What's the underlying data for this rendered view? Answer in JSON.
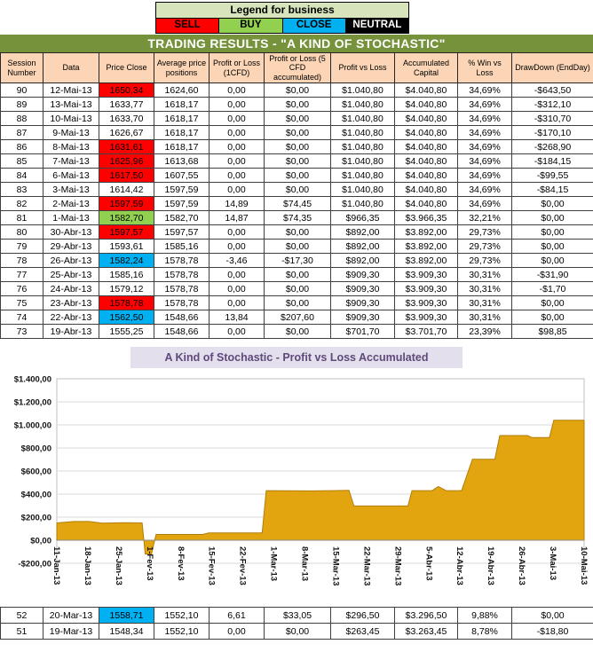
{
  "legend": {
    "title": "Legend for business",
    "items": [
      {
        "label": "SELL",
        "key": "sell",
        "text_color": "#000000"
      },
      {
        "label": "BUY",
        "key": "buy",
        "text_color": "#000000"
      },
      {
        "label": "CLOSE",
        "key": "close",
        "text_color": "#000000"
      },
      {
        "label": "NEUTRAL",
        "key": "neutral",
        "text_color": "#FFFFFF"
      }
    ]
  },
  "colors": {
    "sell": "#FF0000",
    "buy": "#92D050",
    "close": "#00B0F0",
    "neutral": "#000000"
  },
  "title": "TRADING RESULTS - \"A KIND OF STOCHASTIC\"",
  "table": {
    "headers": [
      "Session Number",
      "Data",
      "Price Close",
      "Average price positions",
      "Profit or Loss (1CFD)",
      "Profit or Loss (5 CFD accumulated)",
      "Profit vs Loss",
      "Accumulated Capital",
      "% Win vs Loss",
      "DrawDown (EndDay)"
    ],
    "rows": [
      {
        "session": "90",
        "date": "12-Mai-13",
        "close": "1650,34",
        "tag": "sell",
        "avg": "1624,60",
        "pl1": "0,00",
        "pl5": "$0,00",
        "pvl": "$1.040,80",
        "cap": "$4.040,80",
        "win": "34,69%",
        "dd": "-$643,50"
      },
      {
        "session": "89",
        "date": "13-Mai-13",
        "close": "1633,77",
        "tag": null,
        "avg": "1618,17",
        "pl1": "0,00",
        "pl5": "$0,00",
        "pvl": "$1.040,80",
        "cap": "$4.040,80",
        "win": "34,69%",
        "dd": "-$312,10"
      },
      {
        "session": "88",
        "date": "10-Mai-13",
        "close": "1633,70",
        "tag": null,
        "avg": "1618,17",
        "pl1": "0,00",
        "pl5": "$0,00",
        "pvl": "$1.040,80",
        "cap": "$4.040,80",
        "win": "34,69%",
        "dd": "-$310,70"
      },
      {
        "session": "87",
        "date": "9-Mai-13",
        "close": "1626,67",
        "tag": null,
        "avg": "1618,17",
        "pl1": "0,00",
        "pl5": "$0,00",
        "pvl": "$1.040,80",
        "cap": "$4.040,80",
        "win": "34,69%",
        "dd": "-$170,10"
      },
      {
        "session": "86",
        "date": "8-Mai-13",
        "close": "1631,61",
        "tag": "sell",
        "avg": "1618,17",
        "pl1": "0,00",
        "pl5": "$0,00",
        "pvl": "$1.040,80",
        "cap": "$4.040,80",
        "win": "34,69%",
        "dd": "-$268,90"
      },
      {
        "session": "85",
        "date": "7-Mai-13",
        "close": "1625,96",
        "tag": "sell",
        "avg": "1613,68",
        "pl1": "0,00",
        "pl5": "$0,00",
        "pvl": "$1.040,80",
        "cap": "$4.040,80",
        "win": "34,69%",
        "dd": "-$184,15"
      },
      {
        "session": "84",
        "date": "6-Mai-13",
        "close": "1617,50",
        "tag": "sell",
        "avg": "1607,55",
        "pl1": "0,00",
        "pl5": "$0,00",
        "pvl": "$1.040,80",
        "cap": "$4.040,80",
        "win": "34,69%",
        "dd": "-$99,55"
      },
      {
        "session": "83",
        "date": "3-Mai-13",
        "close": "1614,42",
        "tag": null,
        "avg": "1597,59",
        "pl1": "0,00",
        "pl5": "$0,00",
        "pvl": "$1.040,80",
        "cap": "$4.040,80",
        "win": "34,69%",
        "dd": "-$84,15"
      },
      {
        "session": "82",
        "date": "2-Mai-13",
        "close": "1597,59",
        "tag": "sell",
        "avg": "1597,59",
        "pl1": "14,89",
        "pl5": "$74,45",
        "pvl": "$1.040,80",
        "cap": "$4.040,80",
        "win": "34,69%",
        "dd": "$0,00"
      },
      {
        "session": "81",
        "date": "1-Mai-13",
        "close": "1582,70",
        "tag": "buy",
        "avg": "1582,70",
        "pl1": "14,87",
        "pl5": "$74,35",
        "pvl": "$966,35",
        "cap": "$3.966,35",
        "win": "32,21%",
        "dd": "$0,00"
      },
      {
        "session": "80",
        "date": "30-Abr-13",
        "close": "1597,57",
        "tag": "sell",
        "avg": "1597,57",
        "pl1": "0,00",
        "pl5": "$0,00",
        "pvl": "$892,00",
        "cap": "$3.892,00",
        "win": "29,73%",
        "dd": "$0,00"
      },
      {
        "session": "79",
        "date": "29-Abr-13",
        "close": "1593,61",
        "tag": null,
        "avg": "1585,16",
        "pl1": "0,00",
        "pl5": "$0,00",
        "pvl": "$892,00",
        "cap": "$3.892,00",
        "win": "29,73%",
        "dd": "$0,00"
      },
      {
        "session": "78",
        "date": "26-Abr-13",
        "close": "1582,24",
        "tag": "close",
        "avg": "1578,78",
        "pl1": "-3,46",
        "pl5": "-$17,30",
        "pvl": "$892,00",
        "cap": "$3.892,00",
        "win": "29,73%",
        "dd": "$0,00"
      },
      {
        "session": "77",
        "date": "25-Abr-13",
        "close": "1585,16",
        "tag": null,
        "avg": "1578,78",
        "pl1": "0,00",
        "pl5": "$0,00",
        "pvl": "$909,30",
        "cap": "$3.909,30",
        "win": "30,31%",
        "dd": "-$31,90"
      },
      {
        "session": "76",
        "date": "24-Abr-13",
        "close": "1579,12",
        "tag": null,
        "avg": "1578,78",
        "pl1": "0,00",
        "pl5": "$0,00",
        "pvl": "$909,30",
        "cap": "$3.909,30",
        "win": "30,31%",
        "dd": "-$1,70"
      },
      {
        "session": "75",
        "date": "23-Abr-13",
        "close": "1578,78",
        "tag": "sell",
        "avg": "1578,78",
        "pl1": "0,00",
        "pl5": "$0,00",
        "pvl": "$909,30",
        "cap": "$3.909,30",
        "win": "30,31%",
        "dd": "$0,00"
      },
      {
        "session": "74",
        "date": "22-Abr-13",
        "close": "1562,50",
        "tag": "close",
        "avg": "1548,66",
        "pl1": "13,84",
        "pl5": "$207,60",
        "pvl": "$909,30",
        "cap": "$3.909,30",
        "win": "30,31%",
        "dd": "$0,00"
      },
      {
        "session": "73",
        "date": "19-Abr-13",
        "close": "1555,25",
        "tag": null,
        "avg": "1548,66",
        "pl1": "0,00",
        "pl5": "$0,00",
        "pvl": "$701,70",
        "cap": "$3.701,70",
        "win": "23,39%",
        "dd": "$98,85"
      }
    ]
  },
  "bottom_rows": [
    {
      "session": "52",
      "date": "20-Mar-13",
      "close": "1558,71",
      "tag": "close",
      "avg": "1552,10",
      "pl1": "6,61",
      "pl5": "$33,05",
      "pvl": "$296,50",
      "cap": "$3.296,50",
      "win": "9,88%",
      "dd": "$0,00"
    },
    {
      "session": "51",
      "date": "19-Mar-13",
      "close": "1548,34",
      "tag": null,
      "avg": "1552,10",
      "pl1": "0,00",
      "pl5": "$0,00",
      "pvl": "$263,45",
      "cap": "$3.263,45",
      "win": "8,78%",
      "dd": "-$18,80"
    }
  ],
  "chart_data": {
    "type": "area",
    "title": "A Kind of Stochastic - Profit vs Loss Accumulated",
    "xlabel": "",
    "ylabel": "",
    "ylim": [
      -200,
      1400
    ],
    "grid": true,
    "legend_position": "none",
    "fill_color": "#E3A50F",
    "stroke_color": "#B07D08",
    "y_ticks": [
      "$1.400,00",
      "$1.200,00",
      "$1.000,00",
      "$800,00",
      "$600,00",
      "$400,00",
      "$200,00",
      "$0,00",
      "-$200,00"
    ],
    "x_labels": [
      "11-Jan-13",
      "18-Jan-13",
      "25-Jan-13",
      "1-Fev-13",
      "8-Fev-13",
      "15-Fev-13",
      "22-Fev-13",
      "1-Mar-13",
      "8-Mar-13",
      "15-Mar-13",
      "22-Mar-13",
      "29-Mar-13",
      "5-Abr-13",
      "12-Abr-13",
      "19-Abr-13",
      "26-Abr-13",
      "3-Mai-13",
      "10-Mai-13"
    ],
    "series": [
      {
        "name": "Profit vs Loss Accumulated",
        "points": [
          [
            0,
            150
          ],
          [
            0.55,
            162
          ],
          [
            1.05,
            162
          ],
          [
            1.45,
            148
          ],
          [
            2.2,
            152
          ],
          [
            2.75,
            150
          ],
          [
            2.85,
            -120
          ],
          [
            3.05,
            -120
          ],
          [
            3.2,
            50
          ],
          [
            4.7,
            50
          ],
          [
            4.9,
            63
          ],
          [
            6.62,
            63
          ],
          [
            6.75,
            430
          ],
          [
            8.2,
            428
          ],
          [
            9.42,
            432
          ],
          [
            9.58,
            297
          ],
          [
            11.32,
            297
          ],
          [
            11.45,
            430
          ],
          [
            12.1,
            430
          ],
          [
            12.3,
            466
          ],
          [
            12.55,
            430
          ],
          [
            13.05,
            430
          ],
          [
            13.4,
            702
          ],
          [
            14.12,
            702
          ],
          [
            14.28,
            908
          ],
          [
            15.18,
            908
          ],
          [
            15.32,
            890
          ],
          [
            15.88,
            890
          ],
          [
            16.02,
            1041
          ],
          [
            17,
            1041
          ]
        ]
      }
    ]
  }
}
